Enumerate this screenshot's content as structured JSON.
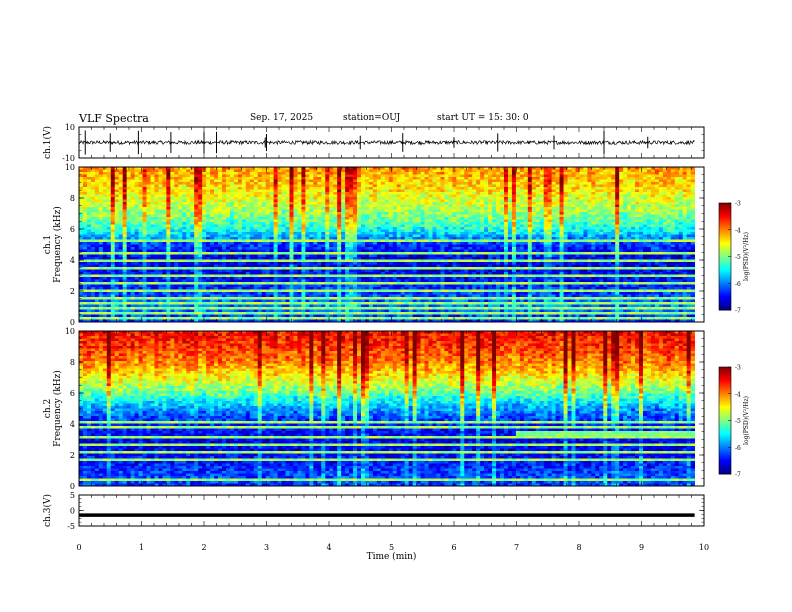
{
  "header": {
    "title": "VLF Spectra",
    "date": "Sep. 17, 2025",
    "station": "station=OUJ",
    "start": "start  UT =   15: 30: 0"
  },
  "chart_data": [
    {
      "type": "line",
      "panel": "ch1-waveform",
      "ylabel": "ch.1(V)",
      "ylim": [
        -10,
        10
      ],
      "y_ticks": [
        "10",
        "-10"
      ],
      "xlim": [
        0,
        10
      ],
      "baseline": 0,
      "noise_amplitude": 1.2,
      "spike_times": [
        0.1,
        0.5,
        0.95,
        1.47,
        2.0,
        2.2,
        2.98,
        3.0,
        4.5,
        5.18,
        6.0,
        6.7,
        7.6,
        8.4,
        9.1
      ]
    },
    {
      "type": "heatmap",
      "panel": "ch1-spectrogram",
      "ylabel": "ch.1\nFrequency (kHz)",
      "ylim": [
        0,
        10
      ],
      "y_ticks": [
        "0",
        "2",
        "4",
        "6",
        "8",
        "10"
      ],
      "xlim": [
        0,
        9.85
      ],
      "colorbar": {
        "label": "log(PSD)(V²/Hz)",
        "range": [
          -7,
          -3
        ],
        "ticks": [
          "-3",
          "-4",
          "-5",
          "-6",
          "-7"
        ]
      },
      "band_profile": [
        {
          "f": 0.0,
          "v": -6.4
        },
        {
          "f": 0.5,
          "v": -6.2
        },
        {
          "f": 1.0,
          "v": -6.0
        },
        {
          "f": 2.0,
          "v": -6.3
        },
        {
          "f": 3.0,
          "v": -6.5
        },
        {
          "f": 4.0,
          "v": -6.6
        },
        {
          "f": 5.0,
          "v": -6.3
        },
        {
          "f": 6.0,
          "v": -5.4
        },
        {
          "f": 7.0,
          "v": -4.9
        },
        {
          "f": 8.0,
          "v": -4.6
        },
        {
          "f": 9.0,
          "v": -4.3
        },
        {
          "f": 10.0,
          "v": -4.1
        }
      ],
      "line_frequencies": [
        0.3,
        0.6,
        0.9,
        1.2,
        1.5,
        2.0,
        2.5,
        3.0,
        3.5,
        4.0,
        4.4,
        5.0,
        5.3
      ]
    },
    {
      "type": "heatmap",
      "panel": "ch2-spectrogram",
      "ylabel": "ch.2\nFrequency (kHz)",
      "ylim": [
        0,
        10
      ],
      "y_ticks": [
        "0",
        "2",
        "4",
        "6",
        "8",
        "10"
      ],
      "xlim": [
        0,
        9.85
      ],
      "colorbar": {
        "label": "log(PSD)(V²/Hz)",
        "range": [
          -7,
          -3
        ],
        "ticks": [
          "-3",
          "-4",
          "-5",
          "-6",
          "-7"
        ]
      },
      "band_profile": [
        {
          "f": 0.0,
          "v": -6.3
        },
        {
          "f": 0.5,
          "v": -6.2
        },
        {
          "f": 1.0,
          "v": -6.3
        },
        {
          "f": 2.0,
          "v": -6.5
        },
        {
          "f": 3.0,
          "v": -6.6
        },
        {
          "f": 4.0,
          "v": -6.4
        },
        {
          "f": 5.0,
          "v": -5.9
        },
        {
          "f": 6.0,
          "v": -5.1
        },
        {
          "f": 7.0,
          "v": -4.5
        },
        {
          "f": 8.0,
          "v": -4.0
        },
        {
          "f": 9.0,
          "v": -3.7
        },
        {
          "f": 10.0,
          "v": -3.5
        }
      ],
      "line_frequencies": [
        0.4,
        0.8,
        1.3,
        1.7,
        2.2,
        2.7,
        3.2,
        3.8,
        4.1,
        4.5
      ],
      "feature": {
        "t_start": 7.0,
        "t_end": 9.85,
        "f_low": 3.1,
        "f_high": 3.6,
        "v": -5.0
      }
    },
    {
      "type": "line",
      "panel": "ch3-waveform",
      "ylabel": "ch.3(V)",
      "xlabel": "Time (min)",
      "ylim": [
        -5,
        5
      ],
      "y_ticks": [
        "5",
        "0",
        "-5"
      ],
      "xlim": [
        0,
        10
      ],
      "x_ticks": [
        "0",
        "1",
        "2",
        "3",
        "4",
        "5",
        "6",
        "7",
        "8",
        "9",
        "10"
      ],
      "level": -1.5
    }
  ]
}
